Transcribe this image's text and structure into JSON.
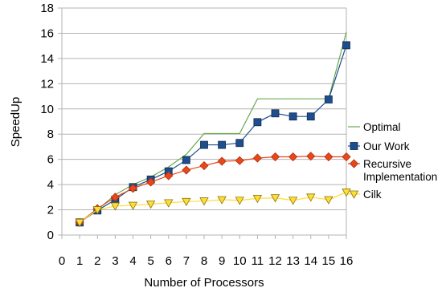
{
  "chart_data": {
    "type": "line",
    "xlabel": "Number of Processors",
    "ylabel": "SpeedUp",
    "x_categories": [
      "0",
      "1",
      "2",
      "3",
      "4",
      "5",
      "6",
      "7",
      "8",
      "9",
      "10",
      "11",
      "12",
      "13",
      "14",
      "15",
      "16"
    ],
    "x": [
      1,
      2,
      3,
      4,
      5,
      6,
      7,
      8,
      9,
      10,
      11,
      12,
      13,
      14,
      15,
      16
    ],
    "ylim": [
      0,
      18
    ],
    "yticks": [
      0,
      2,
      4,
      6,
      8,
      10,
      12,
      14,
      16,
      18
    ],
    "grid": "horizontal",
    "legend_position": "right",
    "series": [
      {
        "name": "Optimal",
        "marker": "none",
        "color": "#6aa84f",
        "values": [
          1,
          2,
          3.2,
          4,
          4.6,
          5.4,
          6.4,
          8.05,
          8.05,
          8.05,
          10.8,
          10.8,
          10.8,
          10.8,
          10.8,
          16.1
        ]
      },
      {
        "name": "Our Work",
        "marker": "square",
        "color": "#1f4e8c",
        "values": [
          1,
          1.95,
          2.8,
          3.8,
          4.4,
          5.05,
          5.95,
          7.15,
          7.15,
          7.3,
          8.95,
          9.65,
          9.4,
          9.4,
          10.75,
          15.05
        ]
      },
      {
        "name": "Recursive Implementation",
        "legend_lines": [
          "Recursive",
          "Implementation"
        ],
        "marker": "diamond",
        "color": "#e8471b",
        "values": [
          1,
          2.1,
          3.0,
          3.7,
          4.2,
          4.7,
          5.15,
          5.5,
          5.85,
          5.9,
          6.1,
          6.2,
          6.2,
          6.25,
          6.2,
          6.2
        ]
      },
      {
        "name": "Cilk",
        "marker": "triangle-down",
        "color": "#ffdd33",
        "values": [
          1,
          2.0,
          2.3,
          2.35,
          2.45,
          2.55,
          2.65,
          2.7,
          2.8,
          2.75,
          2.9,
          2.95,
          2.75,
          3.0,
          2.8,
          3.4
        ]
      }
    ]
  }
}
